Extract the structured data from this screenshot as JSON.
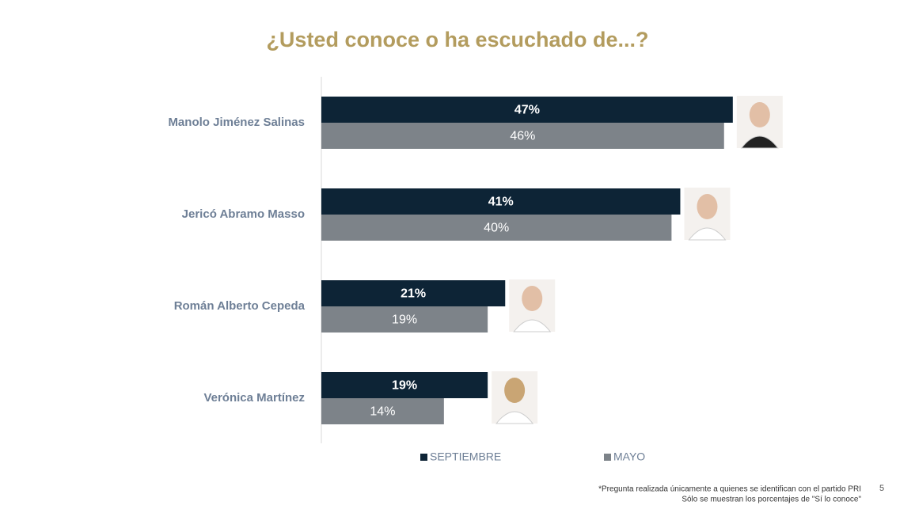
{
  "chart_data": {
    "type": "hbar",
    "title": "¿Usted conoce o ha escuchado de...?",
    "categories": [
      "Manolo Jiménez Salinas",
      "Jericó Abramo Masso",
      "Román Alberto Cepeda",
      "Verónica Martínez"
    ],
    "series": [
      {
        "name": "SEPTIEMBRE",
        "color": "#0d2436",
        "values": [
          47,
          41,
          21,
          19
        ],
        "value_labels": [
          "47%",
          "41%",
          "21%",
          "19%"
        ]
      },
      {
        "name": "MAYO",
        "color": "#7d8389",
        "values": [
          46,
          40,
          19,
          14
        ],
        "value_labels": [
          "46%",
          "40%",
          "19%",
          "14%"
        ]
      }
    ],
    "footnotes": [
      "*Pregunta realizada únicamente a quienes se identifican con el partido PRI",
      "Sólo se muestran los porcentajes de \"Sí lo conoce\""
    ],
    "page_number": "5"
  }
}
